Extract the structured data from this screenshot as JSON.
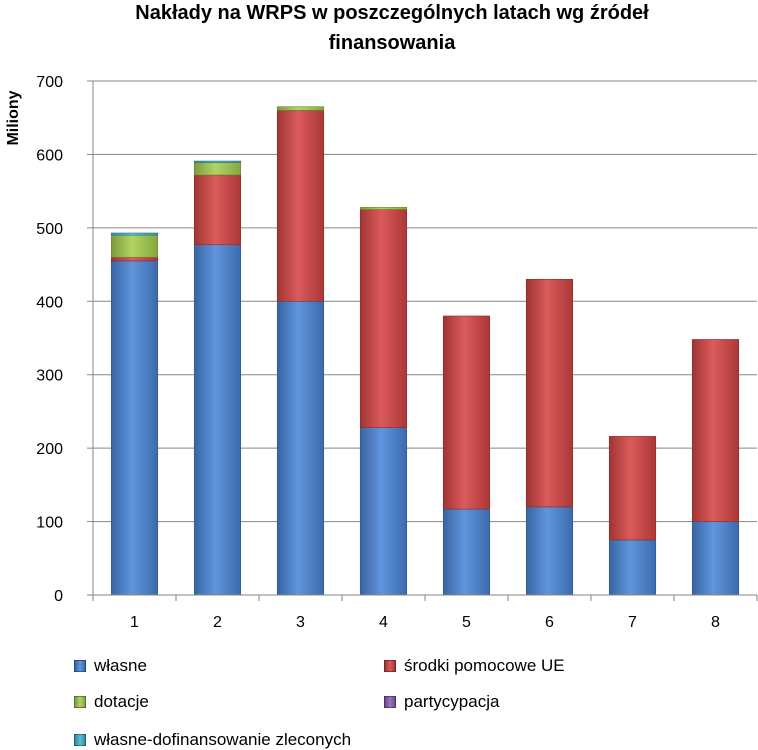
{
  "chart_data": {
    "type": "bar",
    "stacked": true,
    "title": "Nakłady na WRPS  w poszczególnych latach wg źródeł finansowania",
    "title_lines": [
      "Nakłady na WRPS  w poszczególnych latach wg źródeł",
      "finansowania"
    ],
    "xlabel": "",
    "ylabel": "Miliony",
    "categories": [
      "1",
      "2",
      "3",
      "4",
      "5",
      "6",
      "7",
      "8"
    ],
    "ylim": [
      0,
      700
    ],
    "yticks": [
      "0",
      "100",
      "200",
      "300",
      "400",
      "500",
      "600",
      "700"
    ],
    "grid": true,
    "legend_position": "bottom",
    "series": [
      {
        "name": "własne",
        "color": "#4a86d8",
        "values": [
          455,
          477,
          400,
          228,
          117,
          120,
          75,
          100
        ]
      },
      {
        "name": "środki pomocowe UE",
        "color": "#d64545",
        "values": [
          5,
          95,
          260,
          297,
          263,
          310,
          141,
          248
        ]
      },
      {
        "name": "dotacje",
        "color": "#a6cf4f",
        "values": [
          30,
          17,
          5,
          3,
          0,
          0,
          0,
          0
        ]
      },
      {
        "name": "partycypacja",
        "color": "#8a62b8",
        "values": [
          0,
          0,
          0,
          0,
          0,
          0,
          0,
          0
        ]
      },
      {
        "name": "własne-dofinansowanie zleconych",
        "color": "#42b6cf",
        "values": [
          3,
          2,
          0,
          0,
          0,
          0,
          0,
          0
        ]
      }
    ]
  }
}
